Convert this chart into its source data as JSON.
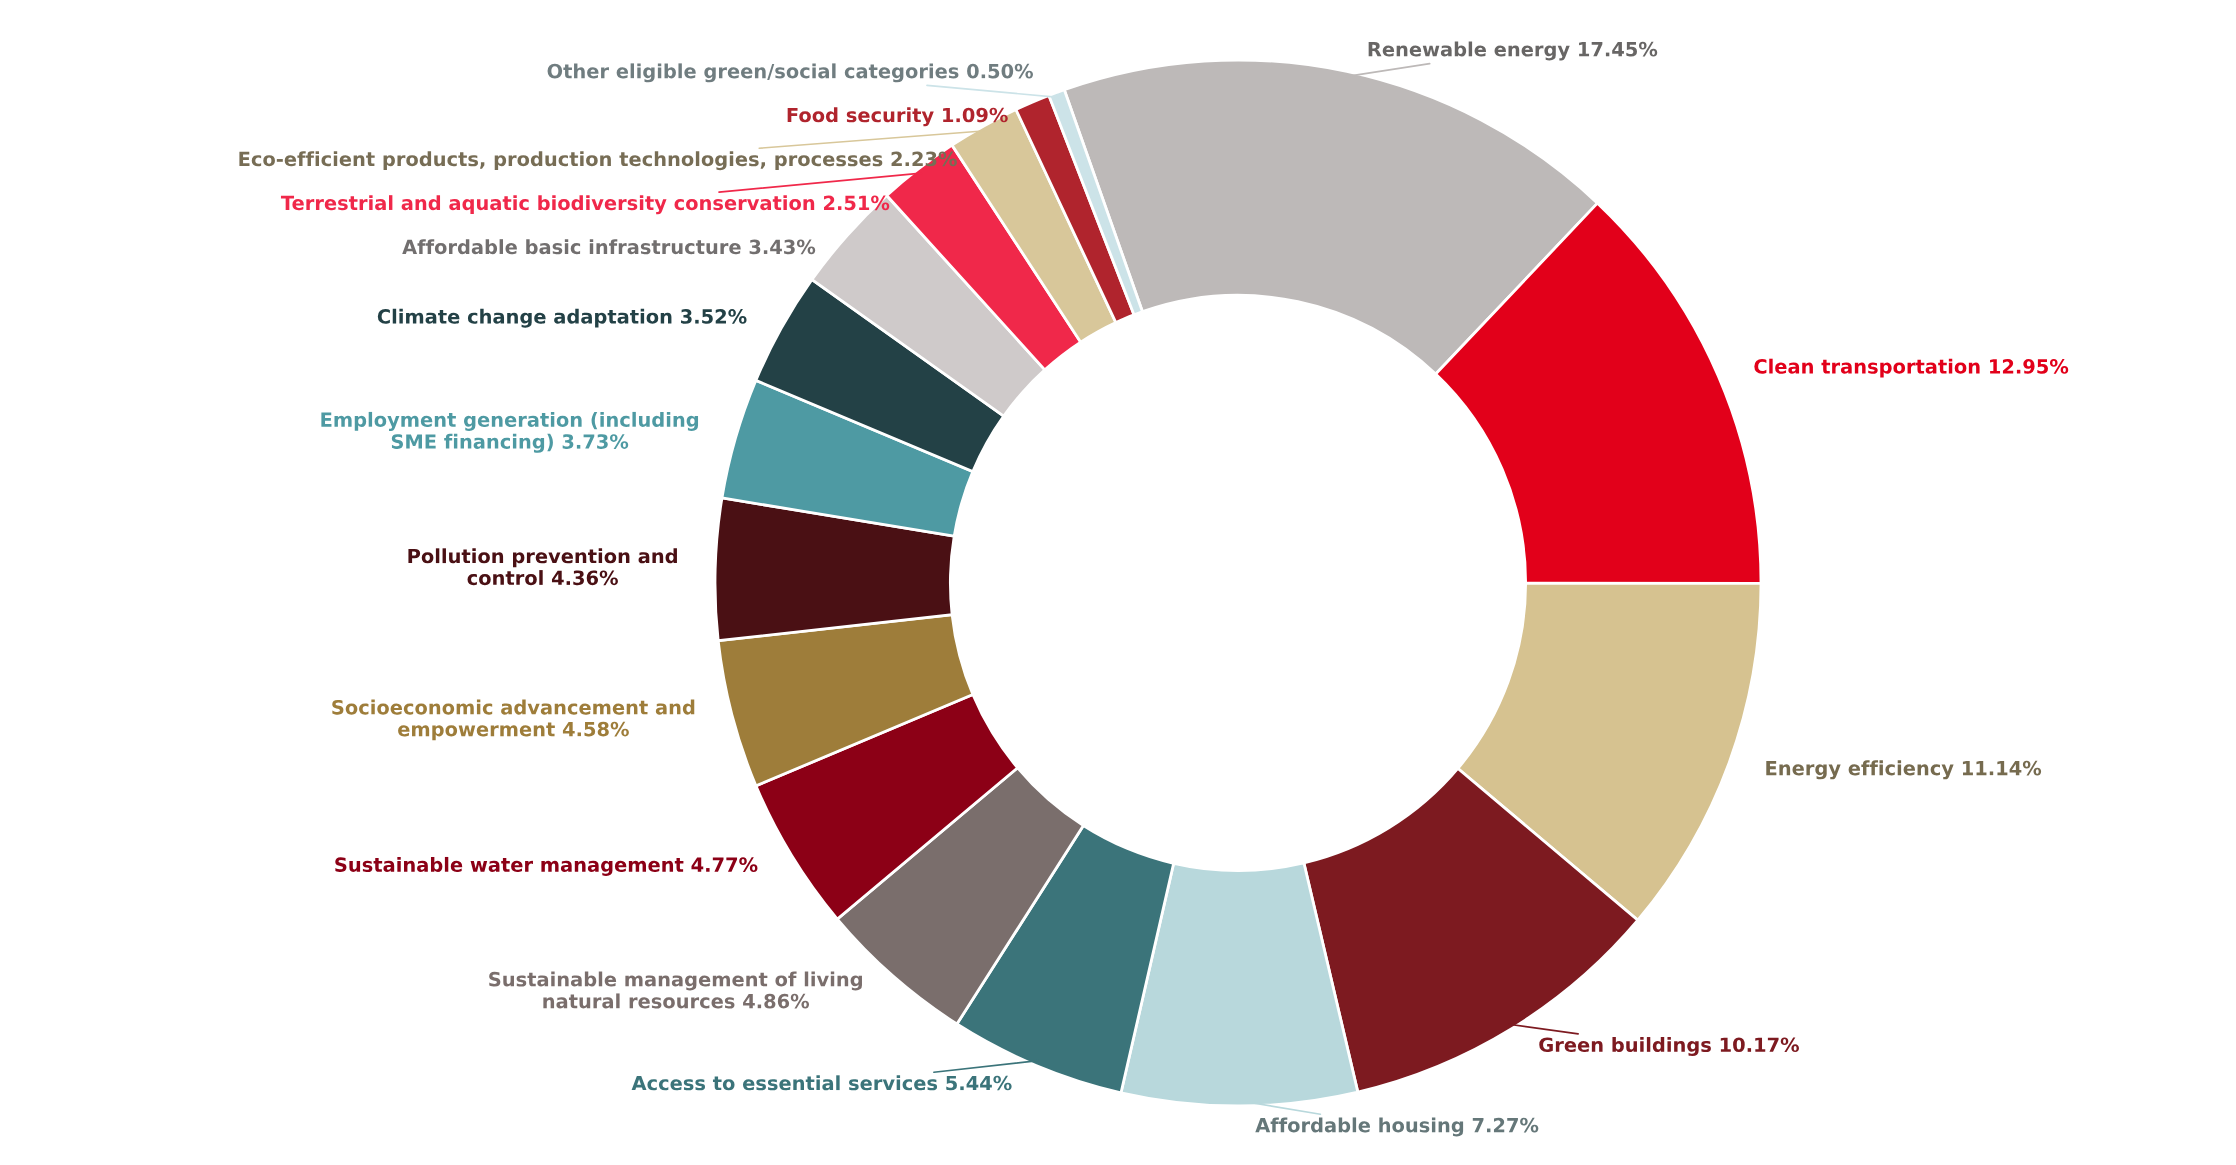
{
  "chart_data": {
    "type": "donut",
    "categories": [
      "Renewable energy",
      "Clean transportation",
      "Energy efficiency",
      "Green buildings",
      "Affordable housing",
      "Access to essential services",
      "Sustainable management of living\nnatural resources",
      "Sustainable water management",
      "Socioeconomic advancement and\nempowerment",
      "Pollution prevention and\ncontrol",
      "Employment generation (including\nSME financing)",
      "Climate change adaptation",
      "Affordable basic infrastructure",
      "Terrestrial and aquatic biodiversity conservation",
      "Eco-efficient products, production technologies, processes",
      "Food security",
      "Other eligible green/social categories"
    ],
    "values": [
      17.45,
      12.95,
      11.14,
      10.17,
      7.27,
      5.44,
      4.86,
      4.77,
      4.58,
      4.36,
      3.73,
      3.52,
      3.43,
      2.51,
      2.23,
      1.09,
      0.5
    ],
    "colors": [
      "#bdb9b8",
      "#e2001a",
      "#d6c290",
      "#7d1a20",
      "#b8d8dc",
      "#3b747a",
      "#7a6e6c",
      "#8c0016",
      "#9e7d3a",
      "#4a1014",
      "#4e9aa3",
      "#234146",
      "#cfcaca",
      "#f0284a",
      "#d8c79a",
      "#b0242d",
      "#cce3e8"
    ],
    "value_labels": [
      "17.45%",
      "12.95%",
      "11.14%",
      "10.17%",
      "7.27%",
      "5.44%",
      "4.86%",
      "4.77%",
      "4.58%",
      "4.36%",
      "3.73%",
      "3.52%",
      "3.43%",
      "2.51%",
      "2.23%",
      "1.09%",
      "0.50%"
    ]
  }
}
